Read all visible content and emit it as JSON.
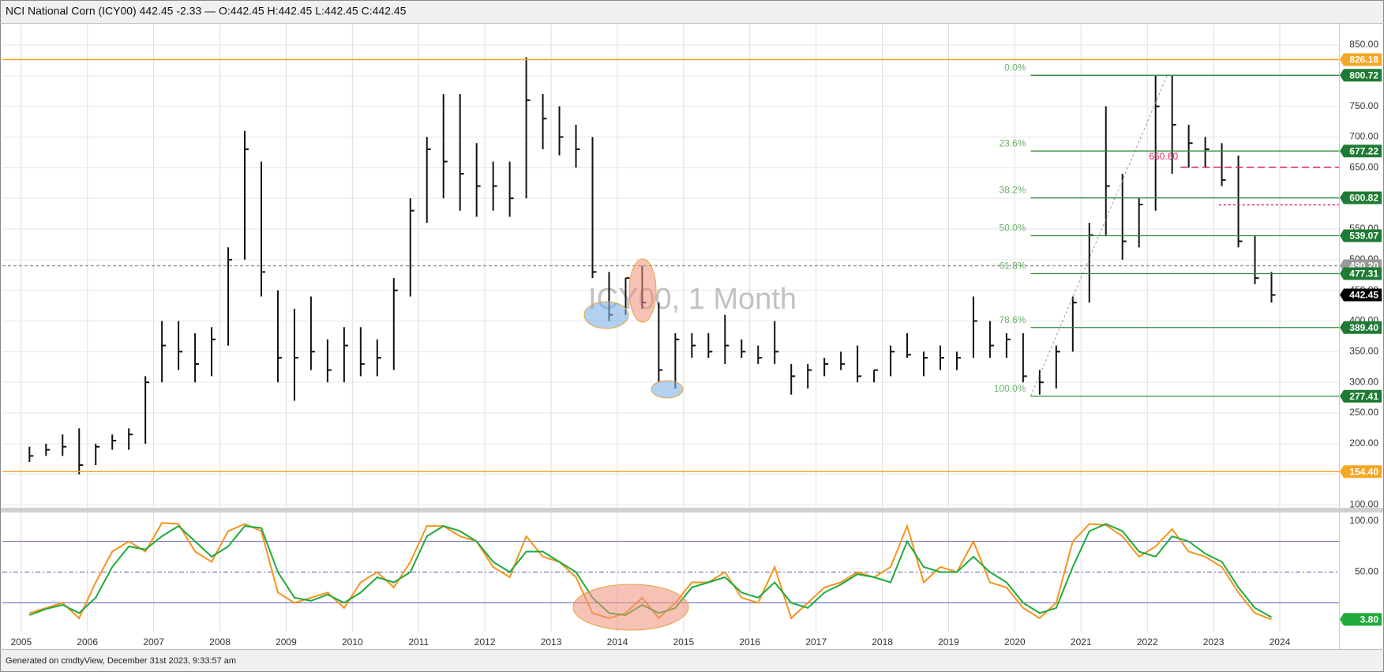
{
  "chart_data": [
    {
      "type": "ohlc",
      "title": "NCI National Corn (ICY00) 442.45 -2.33 — O:442.45 H:442.45 L:442.45 C:442.45",
      "watermark": "ICY00, 1 Month",
      "caption": "Generated on cmdtyView, December 31st 2023, 9:33:57 am",
      "color": "#111111",
      "x": [
        2005.125,
        2005.375,
        2005.625,
        2005.875,
        2006.125,
        2006.375,
        2006.625,
        2006.875,
        2007.125,
        2007.375,
        2007.625,
        2007.875,
        2008.125,
        2008.375,
        2008.625,
        2008.875,
        2009.125,
        2009.375,
        2009.625,
        2009.875,
        2010.125,
        2010.375,
        2010.625,
        2010.875,
        2011.125,
        2011.375,
        2011.625,
        2011.875,
        2012.125,
        2012.375,
        2012.625,
        2012.875,
        2013.125,
        2013.375,
        2013.625,
        2013.875,
        2014.125,
        2014.375,
        2014.625,
        2014.875,
        2015.125,
        2015.375,
        2015.625,
        2015.875,
        2016.125,
        2016.375,
        2016.625,
        2016.875,
        2017.125,
        2017.375,
        2017.625,
        2017.875,
        2018.125,
        2018.375,
        2018.625,
        2018.875,
        2019.125,
        2019.375,
        2019.625,
        2019.875,
        2020.125,
        2020.375,
        2020.625,
        2020.875,
        2021.125,
        2021.375,
        2021.625,
        2021.875,
        2022.125,
        2022.375,
        2022.625,
        2022.875,
        2023.125,
        2023.375,
        2023.625,
        2023.875
      ],
      "high": [
        195,
        200,
        215,
        225,
        200,
        215,
        225,
        310,
        400,
        400,
        380,
        390,
        520,
        710,
        660,
        450,
        420,
        440,
        370,
        390,
        390,
        370,
        470,
        600,
        700,
        770,
        770,
        690,
        660,
        660,
        830,
        770,
        750,
        720,
        700,
        480,
        470,
        490,
        430,
        380,
        380,
        380,
        410,
        370,
        360,
        400,
        330,
        330,
        340,
        350,
        360,
        320,
        360,
        380,
        350,
        360,
        350,
        440,
        400,
        380,
        380,
        320,
        360,
        440,
        560,
        750,
        640,
        600,
        800,
        800,
        720,
        700,
        690,
        670,
        540,
        480
      ],
      "low": [
        170,
        180,
        180,
        150,
        165,
        190,
        190,
        200,
        300,
        320,
        300,
        310,
        360,
        500,
        440,
        300,
        270,
        320,
        300,
        300,
        310,
        310,
        320,
        440,
        560,
        600,
        580,
        570,
        580,
        570,
        600,
        680,
        670,
        650,
        470,
        400,
        410,
        420,
        300,
        290,
        340,
        340,
        330,
        340,
        330,
        330,
        280,
        290,
        310,
        320,
        300,
        300,
        310,
        340,
        310,
        320,
        320,
        340,
        340,
        340,
        300,
        280,
        290,
        350,
        430,
        540,
        500,
        520,
        580,
        640,
        650,
        650,
        620,
        520,
        460,
        430
      ],
      "close": [
        180,
        190,
        195,
        165,
        195,
        205,
        215,
        300,
        360,
        350,
        330,
        370,
        500,
        680,
        480,
        340,
        340,
        350,
        320,
        360,
        330,
        340,
        450,
        580,
        680,
        660,
        640,
        620,
        620,
        600,
        760,
        730,
        700,
        680,
        480,
        410,
        470,
        430,
        320,
        370,
        360,
        350,
        360,
        350,
        340,
        350,
        310,
        320,
        330,
        330,
        310,
        320,
        350,
        345,
        340,
        340,
        340,
        400,
        360,
        370,
        310,
        300,
        350,
        430,
        540,
        620,
        530,
        590,
        750,
        720,
        690,
        680,
        630,
        530,
        470,
        442.45
      ],
      "xlim": [
        2004.716,
        2024.894
      ],
      "ylim": [
        95.5,
        883.5
      ],
      "yticks": [
        {
          "value": 100,
          "label": "100.00"
        },
        {
          "value": 150,
          "label": "150.00"
        },
        {
          "value": 200,
          "label": "200.00"
        },
        {
          "value": 250,
          "label": "250.00"
        },
        {
          "value": 300,
          "label": "300.00"
        },
        {
          "value": 350,
          "label": "350.00"
        },
        {
          "value": 400,
          "label": "400.00"
        },
        {
          "value": 450,
          "label": "450.00"
        },
        {
          "value": 500,
          "label": "500.00"
        },
        {
          "value": 550,
          "label": "550.00"
        },
        {
          "value": 600,
          "label": "600.00"
        },
        {
          "value": 650,
          "label": "650.00"
        },
        {
          "value": 700,
          "label": "700.00"
        },
        {
          "value": 750,
          "label": "750.00"
        },
        {
          "value": 800,
          "label": "800.00"
        },
        {
          "value": 850,
          "label": "850.00"
        }
      ],
      "grid": true,
      "levels": [
        {
          "value": 826.18,
          "color": "#f5a623",
          "badge": true
        },
        {
          "value": 154.4,
          "label": "154.40",
          "color": "#f5a623",
          "badge": true
        },
        {
          "value": 490.2,
          "label": "490.20",
          "color": "#9a9a9a",
          "dash": "4 3",
          "badge": true
        },
        {
          "value": 650.6,
          "label": "650.60",
          "color": "#e0245e",
          "dash": "9 5",
          "from": 2022.5,
          "badge": false
        },
        {
          "value": 589.4,
          "color": "#e0245e",
          "dash": "3 3",
          "from": 2023.08,
          "badge": false
        }
      ],
      "fibonacci": {
        "start_x": 2020.24,
        "anchor_end_x": 2022.3,
        "line_color": "#2e8b3e",
        "label_color": "#6ab06a",
        "badge_color": "#1e7b34",
        "levels": [
          {
            "label": "0.0%",
            "price": 800.72
          },
          {
            "label": "23.6%",
            "price": 677.22
          },
          {
            "label": "38.2%",
            "price": 600.82
          },
          {
            "label": "50.0%",
            "price": 539.07
          },
          {
            "label": "61.8%",
            "price": 477.31
          },
          {
            "label": "78.6%",
            "price": 389.4,
            "price_label": "389.40"
          },
          {
            "label": "100.0%",
            "price": 277.41
          }
        ]
      },
      "last_price": {
        "value": 442.45,
        "color": "#000000"
      }
    },
    {
      "type": "line",
      "x": [
        2005.125,
        2005.375,
        2005.625,
        2005.875,
        2006.125,
        2006.375,
        2006.625,
        2006.875,
        2007.125,
        2007.375,
        2007.625,
        2007.875,
        2008.125,
        2008.375,
        2008.625,
        2008.875,
        2009.125,
        2009.375,
        2009.625,
        2009.875,
        2010.125,
        2010.375,
        2010.625,
        2010.875,
        2011.125,
        2011.375,
        2011.625,
        2011.875,
        2012.125,
        2012.375,
        2012.625,
        2012.875,
        2013.125,
        2013.375,
        2013.625,
        2013.875,
        2014.125,
        2014.375,
        2014.625,
        2014.875,
        2015.125,
        2015.375,
        2015.625,
        2015.875,
        2016.125,
        2016.375,
        2016.625,
        2016.875,
        2017.125,
        2017.375,
        2017.625,
        2017.875,
        2018.125,
        2018.375,
        2018.625,
        2018.875,
        2019.125,
        2019.375,
        2019.625,
        2019.875,
        2020.125,
        2020.375,
        2020.625,
        2020.875,
        2021.125,
        2021.375,
        2021.625,
        2021.875,
        2022.125,
        2022.375,
        2022.625,
        2022.875,
        2023.125,
        2023.375,
        2023.625,
        2023.875
      ],
      "series": [
        {
          "color": "#f7931e",
          "values": [
            10,
            15,
            20,
            5,
            40,
            70,
            80,
            70,
            98,
            97,
            70,
            60,
            90,
            97,
            90,
            30,
            20,
            25,
            30,
            15,
            40,
            50,
            35,
            60,
            95,
            95,
            85,
            80,
            55,
            45,
            85,
            65,
            60,
            45,
            10,
            5,
            10,
            25,
            5,
            20,
            40,
            40,
            50,
            25,
            20,
            55,
            5,
            20,
            35,
            40,
            50,
            45,
            55,
            95,
            40,
            55,
            50,
            80,
            40,
            35,
            15,
            5,
            20,
            80,
            97,
            96,
            85,
            65,
            75,
            92,
            70,
            65,
            55,
            30,
            10,
            3.8
          ]
        },
        {
          "color": "#1faa3c",
          "values": [
            8,
            14,
            18,
            10,
            25,
            55,
            75,
            72,
            85,
            95,
            80,
            65,
            75,
            95,
            93,
            50,
            25,
            22,
            28,
            20,
            30,
            45,
            40,
            50,
            85,
            95,
            90,
            80,
            60,
            50,
            70,
            70,
            60,
            50,
            25,
            10,
            8,
            18,
            10,
            15,
            35,
            40,
            45,
            30,
            25,
            40,
            20,
            15,
            30,
            38,
            48,
            45,
            40,
            80,
            55,
            50,
            50,
            65,
            50,
            40,
            20,
            10,
            15,
            55,
            90,
            97,
            90,
            70,
            65,
            85,
            80,
            68,
            60,
            35,
            15,
            6
          ]
        }
      ],
      "xlim": [
        2004.716,
        2024.894
      ],
      "xticks": [
        2005,
        2006,
        2007,
        2008,
        2009,
        2010,
        2011,
        2012,
        2013,
        2014,
        2015,
        2016,
        2017,
        2018,
        2019,
        2020,
        2021,
        2022,
        2023,
        2024
      ],
      "ylim": [
        -8.2,
        107.4
      ],
      "yticks": [
        {
          "value": 50,
          "label": "50.00"
        },
        {
          "value": 100,
          "label": "100.00"
        }
      ],
      "hlines": [
        {
          "value": 80
        },
        {
          "value": 50,
          "dash": "6 3 2 3"
        },
        {
          "value": 20
        }
      ],
      "hline_color": "#7b7bc8",
      "last_value": {
        "value": 3.8,
        "label": "3.80",
        "color": "#1faa3c"
      }
    }
  ]
}
